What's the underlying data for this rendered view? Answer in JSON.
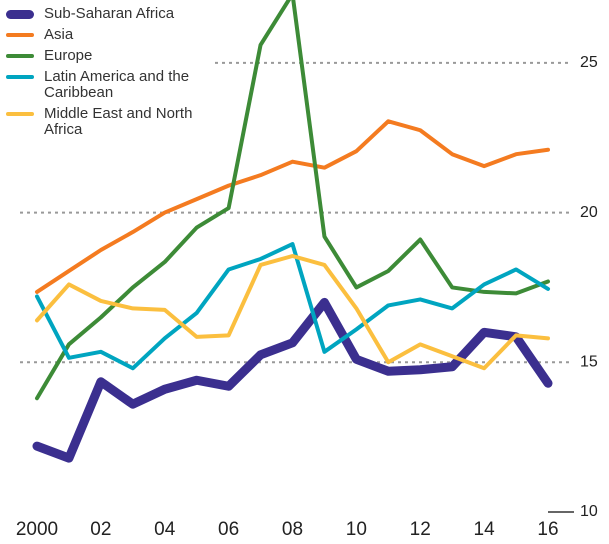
{
  "chart_data": {
    "type": "line",
    "x": [
      2000,
      2001,
      2002,
      2003,
      2004,
      2005,
      2006,
      2007,
      2008,
      2009,
      2010,
      2011,
      2012,
      2013,
      2014,
      2015,
      2016
    ],
    "xlim": [
      2000,
      2016
    ],
    "xticks": [
      2000,
      {
        "value": 2002,
        "label": "02"
      },
      {
        "value": 2004,
        "label": "04"
      },
      {
        "value": 2006,
        "label": "06"
      },
      {
        "value": 2008,
        "label": "08"
      },
      {
        "value": 2010,
        "label": "10"
      },
      {
        "value": 2012,
        "label": "12"
      },
      {
        "value": 2014,
        "label": "14"
      },
      {
        "value": 2016,
        "label": "16"
      }
    ],
    "ylim": [
      10,
      27.1
    ],
    "yticks": [
      10,
      15,
      20,
      25
    ],
    "grid": true,
    "legend": "top-left",
    "series": [
      {
        "name": "Sub-Saharan Africa",
        "color": "#3b2f8f",
        "values": [
          12.2,
          11.8,
          14.35,
          13.6,
          14.1,
          14.4,
          14.2,
          15.25,
          15.65,
          17.0,
          15.1,
          14.7,
          14.75,
          14.85,
          16.0,
          15.85,
          14.3
        ]
      },
      {
        "name": "Asia",
        "color": "#f47b20",
        "values": [
          17.35,
          18.05,
          18.75,
          19.35,
          20.0,
          20.45,
          20.9,
          21.25,
          21.7,
          21.5,
          22.05,
          23.05,
          22.75,
          21.95,
          21.55,
          21.95,
          22.1
        ]
      },
      {
        "name": "Europe",
        "color": "#3d8b37",
        "values": [
          13.8,
          15.6,
          16.5,
          17.5,
          18.35,
          19.5,
          20.15,
          25.6,
          27.3,
          19.2,
          17.5,
          18.05,
          19.1,
          17.5,
          17.35,
          17.3,
          17.7
        ]
      },
      {
        "name": "Latin America and the Caribbean",
        "color": "#00a5c0",
        "values": [
          17.2,
          15.15,
          15.35,
          14.8,
          15.8,
          16.65,
          18.1,
          18.45,
          18.95,
          15.35,
          16.1,
          16.9,
          17.1,
          16.8,
          17.6,
          18.1,
          17.45
        ]
      },
      {
        "name": "Middle East and North Africa",
        "color": "#fbbf3f",
        "values": [
          16.4,
          17.6,
          17.05,
          16.8,
          16.75,
          15.85,
          15.9,
          18.25,
          18.55,
          18.25,
          16.8,
          15.0,
          15.6,
          15.2,
          14.8,
          15.9,
          15.8
        ]
      }
    ]
  }
}
